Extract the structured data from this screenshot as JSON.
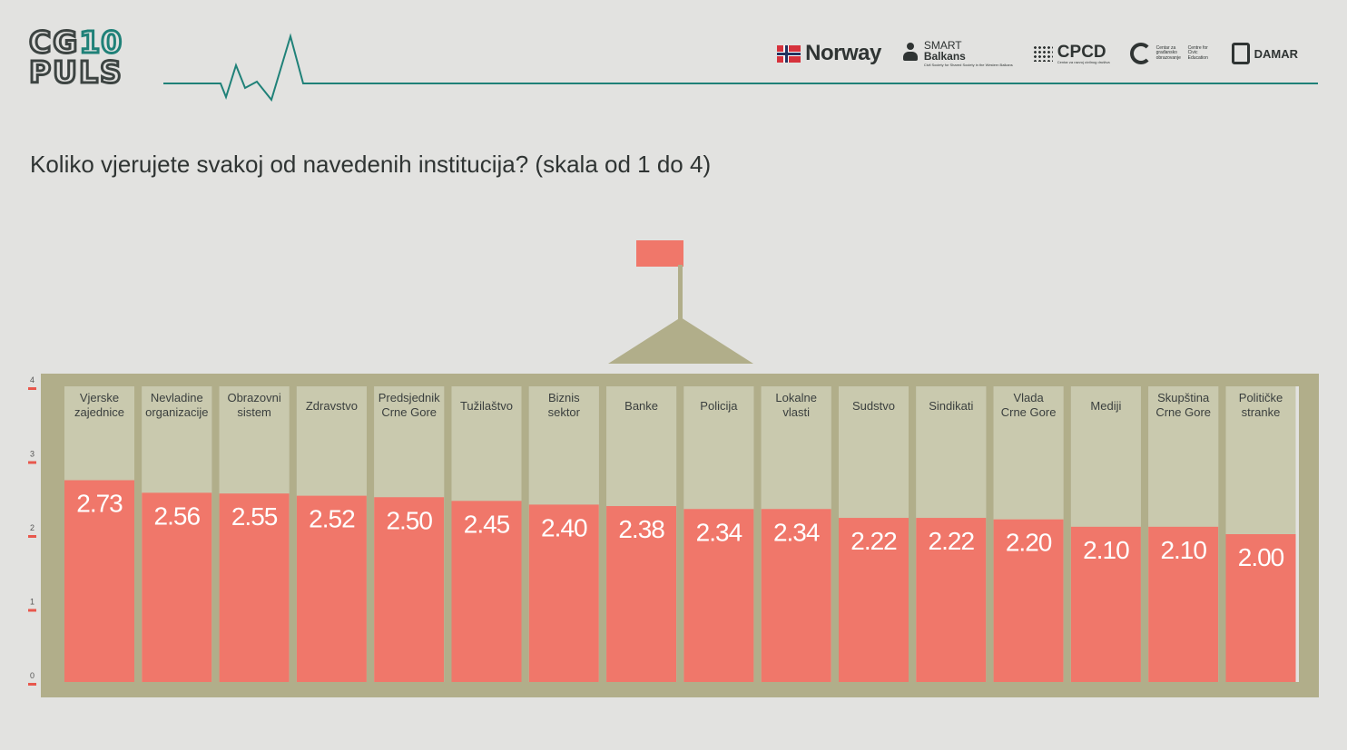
{
  "header": {
    "logo_top": "CG",
    "logo_num": "10",
    "logo_bottom": "PULS",
    "partners": {
      "norway": "Norway",
      "smart_line1": "SMART",
      "smart_line2": "Balkans",
      "smart_small": "Civil Society for Shared Society in the Western Balkans",
      "cpcd": "CPCD",
      "cpcd_small": "Centar za razvoj civilnog društva",
      "centre_a": "Centar za građansko obrazovanje",
      "centre_b": "Centre for Civic Education",
      "damar": "DAMAR"
    },
    "colors": {
      "teal": "#1f8178",
      "dark": "#3d4442"
    }
  },
  "question": "Koliko vjerujete svakoj od navedenih institucija? (skala od 1 do 4)",
  "chart_data": {
    "type": "bar",
    "title": "",
    "xlabel": "",
    "ylabel": "",
    "ylim": [
      0,
      4
    ],
    "yticks": [
      "0",
      "1",
      "2",
      "3",
      "4"
    ],
    "categories": [
      [
        "Vjerske",
        "zajednice"
      ],
      [
        "Nevladine",
        "organizacije"
      ],
      [
        "Obrazovni",
        "sistem"
      ],
      [
        "Zdravstvo"
      ],
      [
        "Predsjednik",
        "Crne Gore"
      ],
      [
        "Tužilaštvo"
      ],
      [
        "Biznis",
        "sektor"
      ],
      [
        "Banke"
      ],
      [
        "Policija"
      ],
      [
        "Lokalne",
        "vlasti"
      ],
      [
        "Sudstvo"
      ],
      [
        "Sindikati"
      ],
      [
        "Vlada",
        "Crne Gore"
      ],
      [
        "Mediji"
      ],
      [
        "Skupština",
        "Crne Gore"
      ],
      [
        "Političke",
        "stranke"
      ]
    ],
    "values": [
      2.73,
      2.56,
      2.55,
      2.52,
      2.5,
      2.45,
      2.4,
      2.38,
      2.34,
      2.34,
      2.22,
      2.22,
      2.2,
      2.1,
      2.1,
      2.0
    ],
    "labels": [
      "2.73",
      "2.56",
      "2.55",
      "2.52",
      "2.50",
      "2.45",
      "2.40",
      "2.38",
      "2.34",
      "2.34",
      "2.22",
      "2.22",
      "2.20",
      "2.10",
      "2.10",
      "2.00"
    ],
    "colors": {
      "bar": "#f0776a",
      "column": "#c9c9ae",
      "frame": "#b1ae8a",
      "flag": "#f0776a",
      "tick": "#e8584d"
    }
  }
}
